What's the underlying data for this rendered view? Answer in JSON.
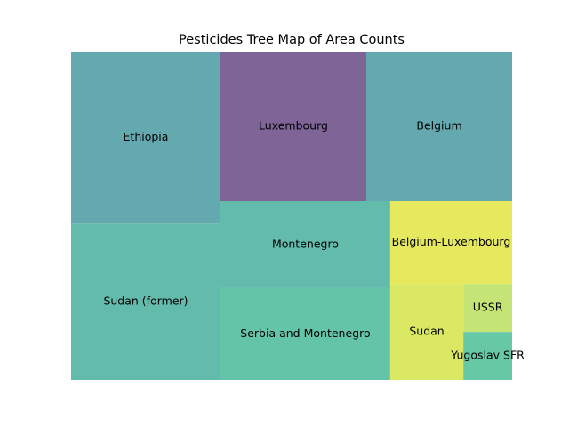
{
  "chart_data": {
    "type": "treemap",
    "title": "Pesticides Tree Map of Area Counts",
    "items": [
      {
        "label": "Ethiopia",
        "value": 33,
        "color": "#65a9b0"
      },
      {
        "label": "Sudan (former)",
        "value": 30,
        "color": "#63bbab"
      },
      {
        "label": "Luxembourg",
        "value": 28,
        "color": "#7f6497"
      },
      {
        "label": "Belgium",
        "value": 28,
        "color": "#65a9b0"
      },
      {
        "label": "Montenegro",
        "value": 19,
        "color": "#63bbab"
      },
      {
        "label": "Serbia and Montenegro",
        "value": 20,
        "color": "#63c4a7"
      },
      {
        "label": "Belgium-Luxembourg",
        "value": 13,
        "color": "#e6e95e"
      },
      {
        "label": "Sudan",
        "value": 9,
        "color": "#dbe863"
      },
      {
        "label": "USSR",
        "value": 3,
        "color": "#c4e476"
      },
      {
        "label": "Yugoslav SFR",
        "value": 3,
        "color": "#67c8a5"
      }
    ]
  }
}
